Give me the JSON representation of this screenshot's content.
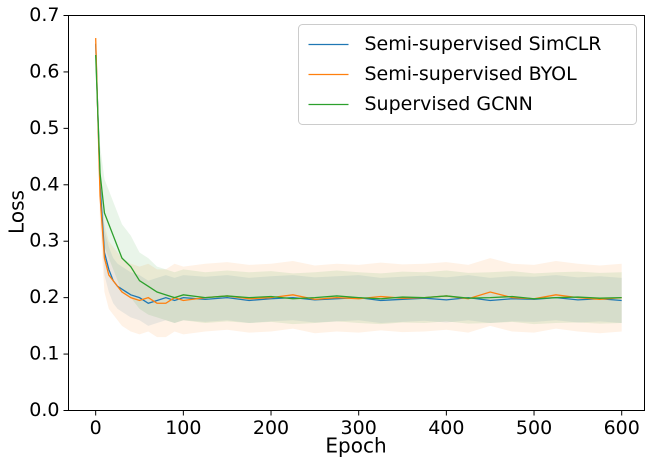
{
  "chart_data": {
    "type": "line",
    "x_label": "Epoch",
    "y_label": "Loss",
    "x": [
      0,
      5,
      10,
      15,
      20,
      25,
      30,
      40,
      50,
      60,
      70,
      80,
      90,
      100,
      125,
      150,
      175,
      200,
      225,
      250,
      275,
      300,
      325,
      350,
      375,
      400,
      425,
      450,
      475,
      500,
      525,
      550,
      575,
      600
    ],
    "xlim": [
      -31,
      626
    ],
    "ylim": [
      0,
      0.7
    ],
    "xticks": [
      0,
      100,
      200,
      300,
      400,
      500,
      600
    ],
    "yticks": [
      {
        "value": 0,
        "label": "0.0"
      },
      0.1,
      0.2,
      0.3,
      0.4,
      0.5,
      0.6,
      0.7
    ],
    "legend_position": "upper right",
    "series": [
      {
        "name": "Semi-supervised SimCLR",
        "color": "#1f77b4",
        "values": [
          0.65,
          0.4,
          0.28,
          0.25,
          0.23,
          0.22,
          0.215,
          0.205,
          0.2,
          0.19,
          0.195,
          0.2,
          0.195,
          0.2,
          0.197,
          0.2,
          0.195,
          0.198,
          0.2,
          0.196,
          0.198,
          0.2,
          0.195,
          0.197,
          0.199,
          0.196,
          0.2,
          0.195,
          0.198,
          0.197,
          0.2,
          0.196,
          0.198,
          0.195
        ],
        "upper": [
          0.66,
          0.44,
          0.32,
          0.29,
          0.27,
          0.26,
          0.255,
          0.245,
          0.24,
          0.23,
          0.235,
          0.24,
          0.235,
          0.24,
          0.237,
          0.24,
          0.235,
          0.238,
          0.24,
          0.236,
          0.238,
          0.24,
          0.235,
          0.237,
          0.239,
          0.236,
          0.24,
          0.235,
          0.238,
          0.237,
          0.24,
          0.236,
          0.238,
          0.235
        ],
        "lower": [
          0.64,
          0.36,
          0.24,
          0.21,
          0.19,
          0.18,
          0.175,
          0.165,
          0.16,
          0.15,
          0.155,
          0.16,
          0.155,
          0.16,
          0.157,
          0.16,
          0.155,
          0.158,
          0.16,
          0.156,
          0.158,
          0.16,
          0.155,
          0.157,
          0.159,
          0.156,
          0.16,
          0.155,
          0.158,
          0.157,
          0.16,
          0.156,
          0.158,
          0.155
        ]
      },
      {
        "name": "Semi-supervised BYOL",
        "color": "#ff7f0e",
        "values": [
          0.66,
          0.38,
          0.27,
          0.24,
          0.23,
          0.22,
          0.21,
          0.2,
          0.195,
          0.2,
          0.19,
          0.19,
          0.2,
          0.195,
          0.2,
          0.203,
          0.198,
          0.2,
          0.205,
          0.197,
          0.2,
          0.198,
          0.202,
          0.199,
          0.2,
          0.203,
          0.198,
          0.21,
          0.2,
          0.198,
          0.205,
          0.2,
          0.197,
          0.2
        ],
        "upper": [
          0.67,
          0.43,
          0.33,
          0.3,
          0.29,
          0.28,
          0.27,
          0.26,
          0.255,
          0.26,
          0.25,
          0.25,
          0.26,
          0.255,
          0.26,
          0.263,
          0.258,
          0.26,
          0.265,
          0.257,
          0.26,
          0.258,
          0.262,
          0.259,
          0.26,
          0.263,
          0.258,
          0.27,
          0.26,
          0.258,
          0.265,
          0.26,
          0.257,
          0.26
        ],
        "lower": [
          0.65,
          0.33,
          0.21,
          0.18,
          0.17,
          0.16,
          0.15,
          0.14,
          0.135,
          0.14,
          0.13,
          0.13,
          0.14,
          0.135,
          0.14,
          0.143,
          0.138,
          0.14,
          0.145,
          0.137,
          0.14,
          0.138,
          0.142,
          0.139,
          0.14,
          0.143,
          0.138,
          0.15,
          0.14,
          0.138,
          0.145,
          0.14,
          0.137,
          0.14
        ]
      },
      {
        "name": "Supervised GCNN",
        "color": "#2ca02c",
        "values": [
          0.63,
          0.42,
          0.35,
          0.33,
          0.31,
          0.29,
          0.27,
          0.255,
          0.23,
          0.22,
          0.21,
          0.205,
          0.2,
          0.205,
          0.2,
          0.203,
          0.2,
          0.202,
          0.198,
          0.2,
          0.203,
          0.2,
          0.198,
          0.201,
          0.2,
          0.203,
          0.199,
          0.2,
          0.202,
          0.198,
          0.2,
          0.201,
          0.199,
          0.2
        ],
        "upper": [
          0.64,
          0.47,
          0.41,
          0.39,
          0.37,
          0.35,
          0.33,
          0.31,
          0.28,
          0.27,
          0.255,
          0.25,
          0.245,
          0.25,
          0.245,
          0.248,
          0.245,
          0.247,
          0.243,
          0.245,
          0.248,
          0.245,
          0.243,
          0.246,
          0.245,
          0.248,
          0.244,
          0.245,
          0.247,
          0.243,
          0.245,
          0.246,
          0.244,
          0.245
        ],
        "lower": [
          0.62,
          0.37,
          0.29,
          0.27,
          0.25,
          0.23,
          0.21,
          0.2,
          0.18,
          0.17,
          0.165,
          0.16,
          0.155,
          0.16,
          0.155,
          0.158,
          0.155,
          0.157,
          0.153,
          0.155,
          0.158,
          0.155,
          0.153,
          0.156,
          0.155,
          0.158,
          0.154,
          0.155,
          0.157,
          0.153,
          0.155,
          0.156,
          0.154,
          0.155
        ]
      }
    ]
  }
}
